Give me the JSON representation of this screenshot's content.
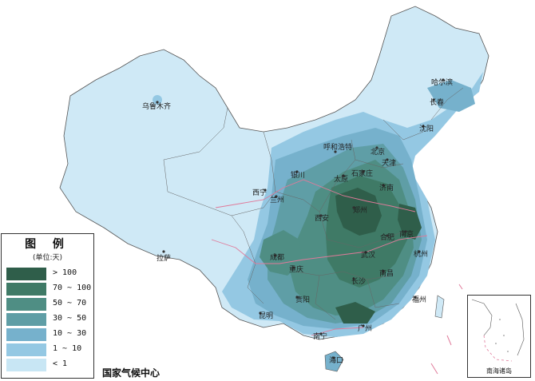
{
  "legend": {
    "title": "图 例",
    "unit": "(单位:天)",
    "items": [
      {
        "label": "> 100",
        "color": "#2f5e4a"
      },
      {
        "label": "70 ~ 100",
        "color": "#3f7a66"
      },
      {
        "label": "50 ~ 70",
        "color": "#4f8e84"
      },
      {
        "label": "30 ~ 50",
        "color": "#5f9ea6"
      },
      {
        "label": "10 ~ 30",
        "color": "#76b1cc"
      },
      {
        "label": "1 ~ 10",
        "color": "#94c8e3"
      },
      {
        "label": "< 1",
        "color": "#c8e6f4"
      }
    ]
  },
  "source": "国家气候中心",
  "inset_label": "南海诸岛",
  "cities": [
    {
      "name": "乌鲁木齐"
    },
    {
      "name": "拉萨"
    },
    {
      "name": "西宁"
    },
    {
      "name": "兰州"
    },
    {
      "name": "银川"
    },
    {
      "name": "呼和浩特"
    },
    {
      "name": "北京"
    },
    {
      "name": "天津"
    },
    {
      "name": "石家庄"
    },
    {
      "name": "太原"
    },
    {
      "name": "济南"
    },
    {
      "name": "郑州"
    },
    {
      "name": "西安"
    },
    {
      "name": "成都"
    },
    {
      "name": "重庆"
    },
    {
      "name": "贵阳"
    },
    {
      "name": "昆明"
    },
    {
      "name": "武汉"
    },
    {
      "name": "长沙"
    },
    {
      "name": "南昌"
    },
    {
      "name": "合肥"
    },
    {
      "name": "南京"
    },
    {
      "name": "杭州"
    },
    {
      "name": "福州"
    },
    {
      "name": "广州"
    },
    {
      "name": "南宁"
    },
    {
      "name": "海口"
    },
    {
      "name": "沈阳"
    },
    {
      "name": "长春"
    },
    {
      "name": "哈尔滨"
    }
  ]
}
